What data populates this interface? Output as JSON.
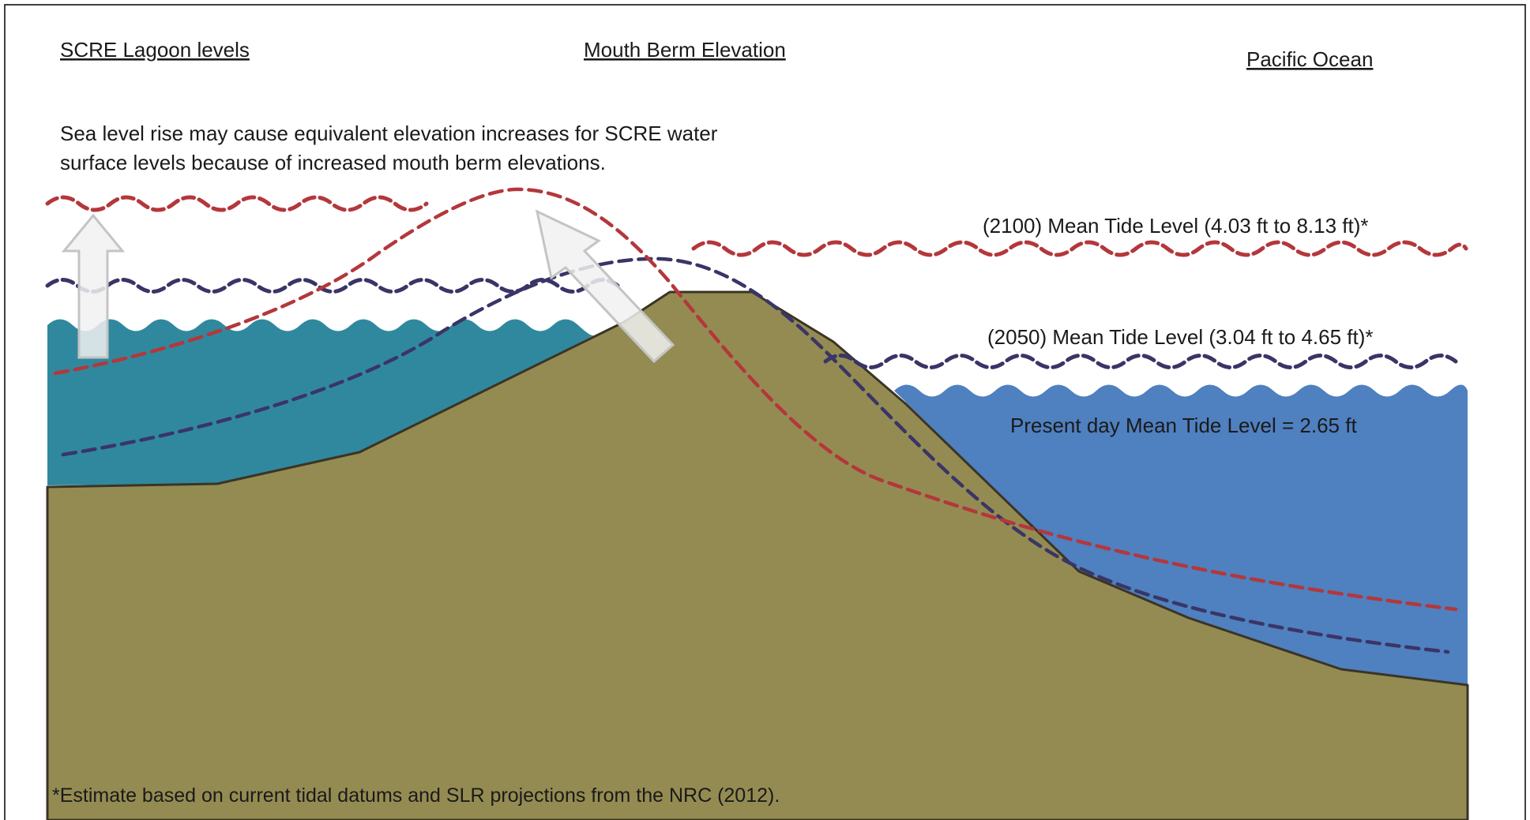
{
  "headings": {
    "lagoon": "SCRE Lagoon levels",
    "berm": "Mouth Berm Elevation",
    "ocean": "Pacific Ocean"
  },
  "note": {
    "line1": "Sea level rise may cause equivalent elevation increases for SCRE water",
    "line2": "surface levels because of increased mouth berm elevations."
  },
  "tide_labels": {
    "t2100": "(2100) Mean Tide Level (4.03 ft to 8.13 ft)*",
    "t2050": "(2050) Mean Tide Level (3.04 ft to 4.65 ft)*",
    "present": "Present day Mean Tide Level = 2.65 ft"
  },
  "footnote": "*Estimate based on current tidal datums and SLR projections from the NRC (2012).",
  "colors": {
    "sand": "#948b52",
    "lagoon_water": "#30889e",
    "ocean_water": "#4f80c0",
    "line_2100": "#b4373b",
    "line_2050": "#3a3567",
    "arrow_fill": "#f1f1f1",
    "arrow_stroke": "#c4c4c4"
  }
}
